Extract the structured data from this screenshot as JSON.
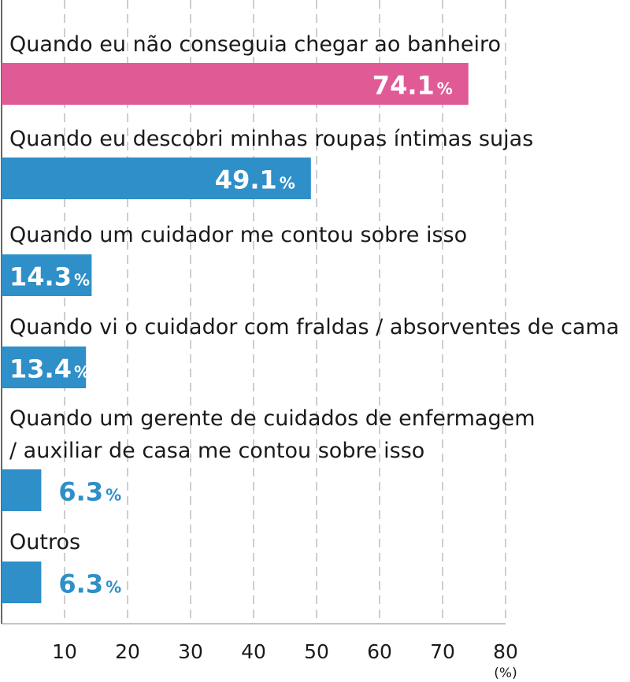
{
  "chart_data": {
    "type": "bar",
    "orientation": "horizontal",
    "categories": [
      [
        "Quando eu não conseguia chegar ao banheiro"
      ],
      [
        "Quando eu descobri minhas roupas íntimas sujas"
      ],
      [
        "Quando um cuidador me contou sobre isso"
      ],
      [
        "Quando vi o cuidador com fraldas / absorventes de cama"
      ],
      [
        "Quando um gerente de cuidados de enfermagem",
        "/ auxiliar de casa me contou sobre isso"
      ],
      [
        "Outros"
      ]
    ],
    "values": [
      74.1,
      49.1,
      14.3,
      13.4,
      6.3,
      6.3
    ],
    "value_labels": [
      "74.1",
      "49.1",
      "14.3",
      "13.4",
      "6.3",
      "6.3"
    ],
    "percent_sign": "%",
    "bar_colors": [
      "#e05a96",
      "#2e8fc9",
      "#2e8fc9",
      "#2e8fc9",
      "#2e8fc9",
      "#2e8fc9"
    ],
    "xlim": [
      0,
      80
    ],
    "xticks": [
      "10",
      "20",
      "30",
      "40",
      "50",
      "60",
      "70",
      "80"
    ],
    "x_unit": "(%)",
    "grid": "dashed vertical",
    "legend": "none"
  }
}
